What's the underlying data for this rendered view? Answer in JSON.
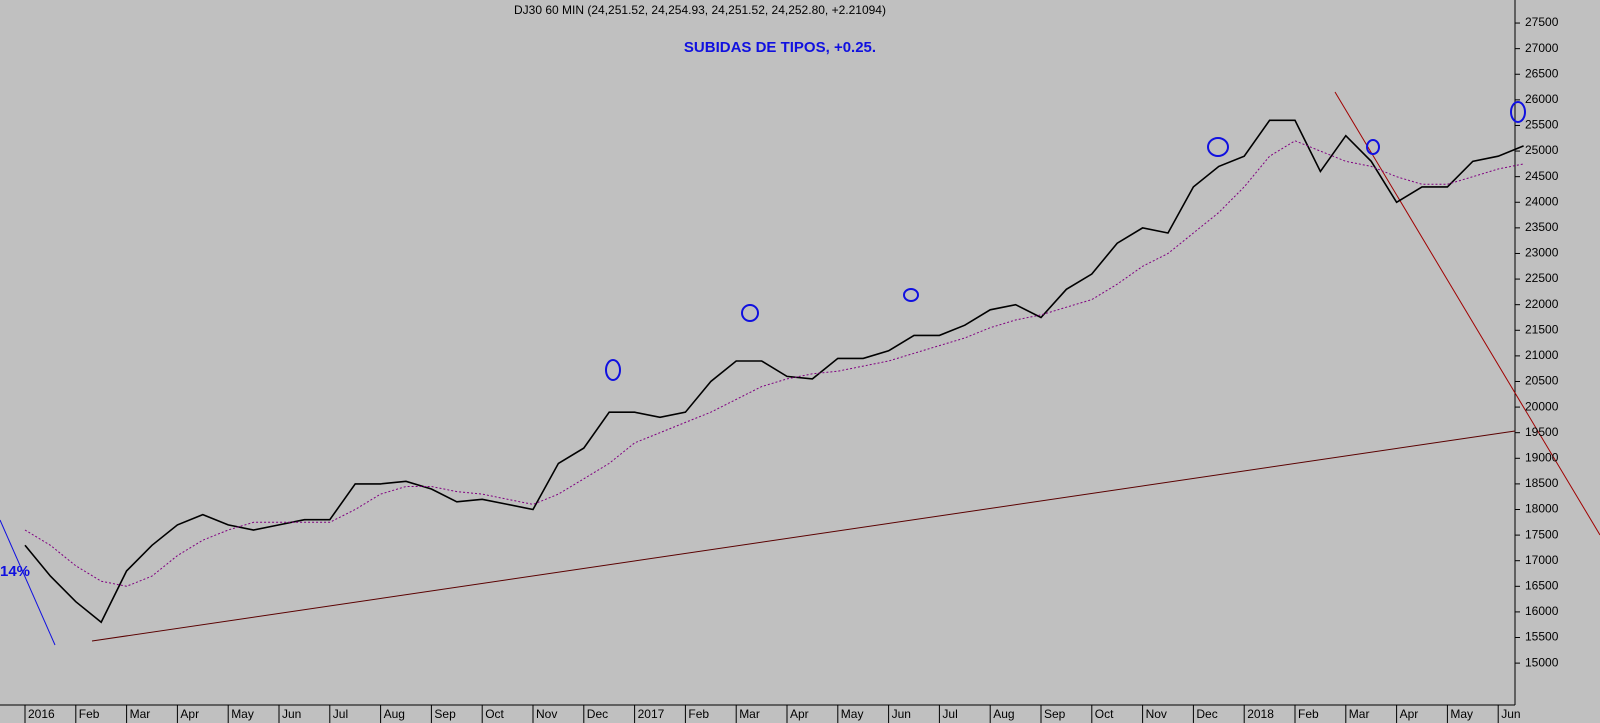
{
  "chart_data": {
    "type": "line",
    "title": "DJ30 60 MIN (24,251.52, 24,254.93, 24,251.52, 24,252.80, +2.21094)",
    "subtitle": "SUBIDAS DE TIPOS, +0.25.",
    "annotation": "14%",
    "categories": [
      "2016",
      null,
      "Feb",
      null,
      "Mar",
      null,
      "Apr",
      null,
      "May",
      null,
      "Jun",
      null,
      "Jul",
      null,
      "Aug",
      null,
      "Sep",
      null,
      "Oct",
      null,
      "Nov",
      null,
      "Dec",
      null,
      "2017",
      null,
      "Feb",
      null,
      "Mar",
      null,
      "Apr",
      null,
      "May",
      null,
      "Jun",
      null,
      "Jul",
      null,
      "Aug",
      null,
      "Sep",
      null,
      "Oct",
      null,
      "Nov",
      null,
      "Dec",
      null,
      "2018",
      null,
      "Feb",
      null,
      "Mar",
      null,
      "Apr",
      null,
      "May",
      null,
      "Jun",
      null
    ],
    "series": [
      {
        "color": "#000000",
        "dash": false,
        "values": [
          17300,
          16700,
          16200,
          15800,
          16800,
          17300,
          17700,
          17900,
          17700,
          17600,
          17700,
          17800,
          17800,
          18500,
          18500,
          18550,
          18400,
          18150,
          18200,
          18100,
          18000,
          18900,
          19200,
          19900,
          19900,
          19800,
          19900,
          20500,
          20900,
          20900,
          20600,
          20550,
          20950,
          20950,
          21100,
          21400,
          21400,
          21600,
          21900,
          22000,
          21750,
          22300,
          22600,
          23200,
          23500,
          23400,
          24300,
          24700,
          24900,
          25600,
          25600,
          24600,
          25300,
          24800,
          24000,
          24300,
          24300,
          24800,
          24900,
          25100
        ]
      },
      {
        "color": "#800080",
        "dash": true,
        "values": [
          17600,
          17300,
          16900,
          16600,
          16500,
          16700,
          17100,
          17400,
          17600,
          17750,
          17750,
          17750,
          17750,
          18000,
          18300,
          18450,
          18450,
          18350,
          18300,
          18200,
          18100,
          18300,
          18600,
          18900,
          19300,
          19500,
          19700,
          19900,
          20150,
          20400,
          20550,
          20650,
          20700,
          20800,
          20900,
          21050,
          21200,
          21350,
          21550,
          21700,
          21800,
          21950,
          22100,
          22400,
          22750,
          23000,
          23400,
          23800,
          24300,
          24900,
          25200,
          25000,
          24800,
          24700,
          24500,
          24350,
          24350,
          24500,
          24650,
          24750
        ]
      }
    ],
    "ylim": [
      14475,
      27950
    ],
    "yticks": [
      15000,
      15500,
      16000,
      16500,
      17000,
      17500,
      18000,
      18500,
      19000,
      19500,
      20000,
      20500,
      21000,
      21500,
      22000,
      22500,
      23000,
      23500,
      24000,
      24500,
      25000,
      25500,
      26000,
      26500,
      27000,
      27500
    ]
  }
}
